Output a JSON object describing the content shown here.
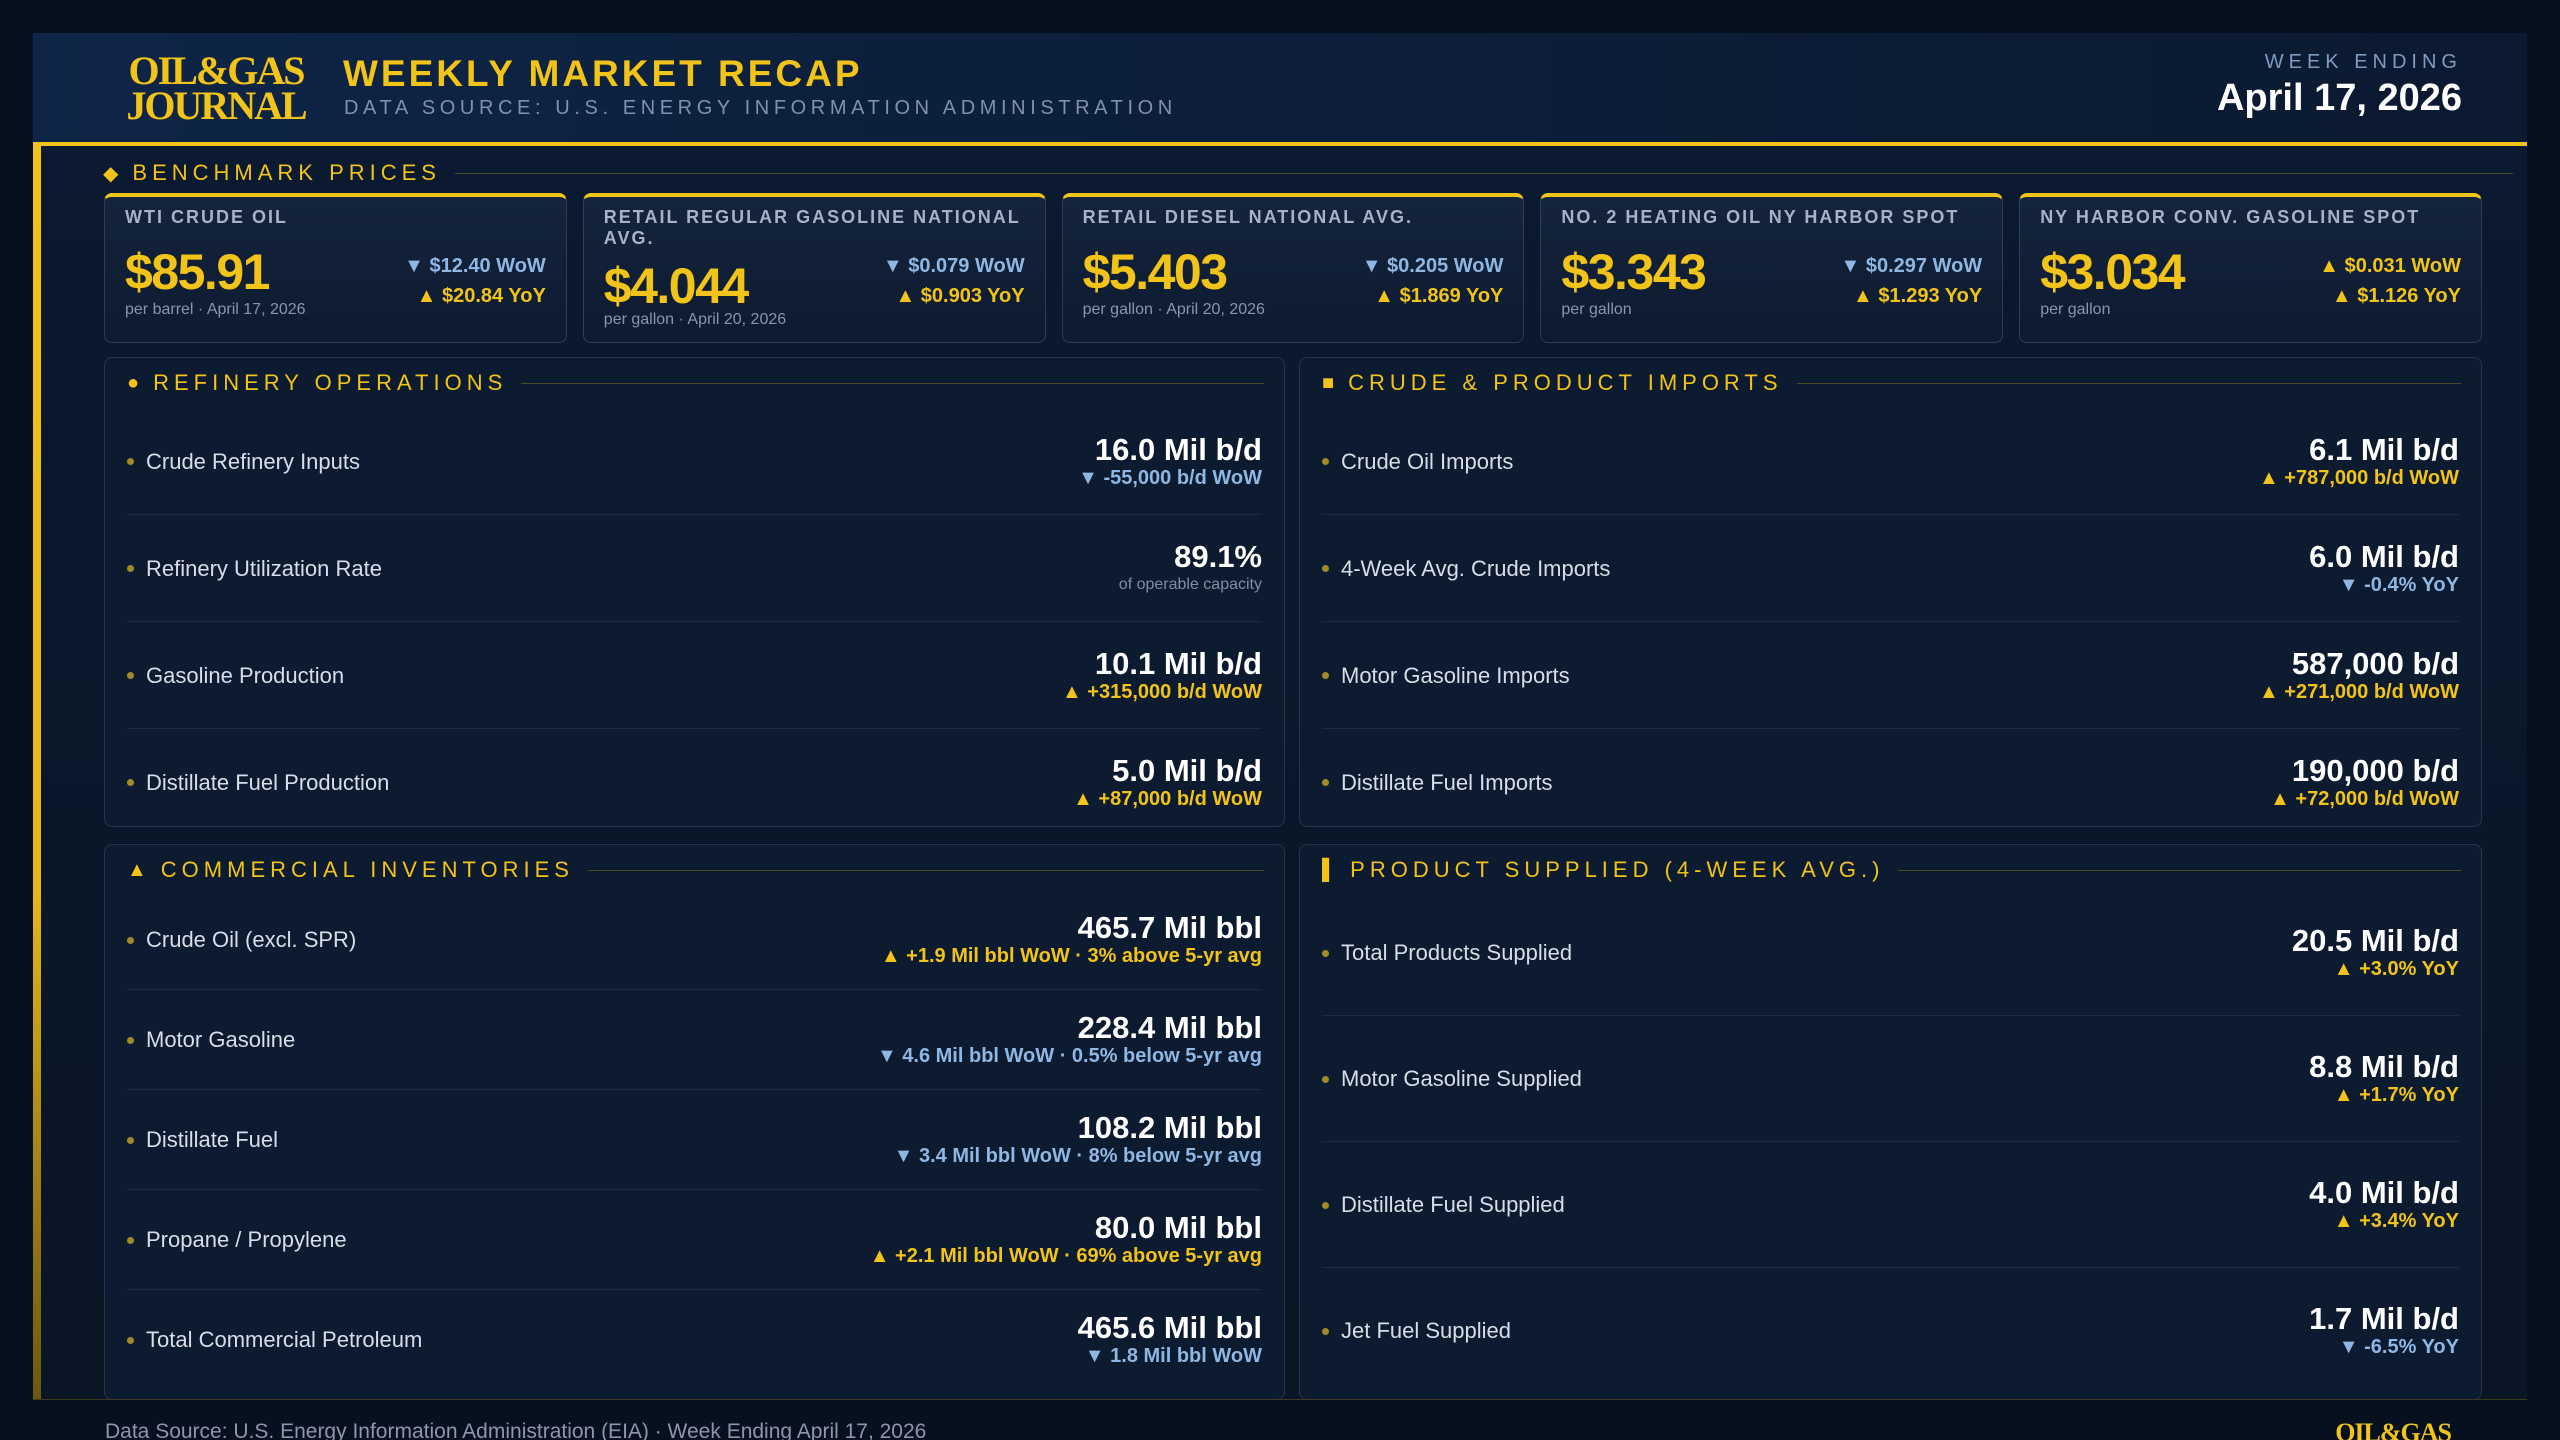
{
  "header": {
    "logo_line1": "OIL&GAS",
    "logo_line2": "JOURNAL",
    "title": "WEEKLY MARKET RECAP",
    "subtitle": "DATA SOURCE: U.S. ENERGY INFORMATION ADMINISTRATION",
    "week_label": "WEEK ENDING",
    "week_date": "April 17, 2026"
  },
  "colors": {
    "accent": "#f2c318",
    "background": "#0b1a31",
    "down": "#8fb7e4"
  },
  "benchmark": {
    "heading": "BENCHMARK PRICES",
    "icon": "diamond-icon",
    "cards": [
      {
        "label": "WTI CRUDE OIL",
        "value": "$85.91",
        "sub": "per barrel · April 17, 2026",
        "wow": "▼ $12.40 WoW",
        "wow_dir": "down",
        "yoy": "▲ $20.84 YoY",
        "yoy_dir": "up"
      },
      {
        "label": "RETAIL REGULAR GASOLINE NATIONAL AVG.",
        "value": "$4.044",
        "sub": "per gallon · April 20, 2026",
        "wow": "▼ $0.079 WoW",
        "wow_dir": "down",
        "yoy": "▲ $0.903 YoY",
        "yoy_dir": "up"
      },
      {
        "label": "RETAIL DIESEL NATIONAL AVG.",
        "value": "$5.403",
        "sub": "per gallon · April 20, 2026",
        "wow": "▼ $0.205 WoW",
        "wow_dir": "down",
        "yoy": "▲ $1.869 YoY",
        "yoy_dir": "up"
      },
      {
        "label": "NO. 2 HEATING OIL NY HARBOR SPOT",
        "value": "$3.343",
        "sub": "per gallon",
        "wow": "▼ $0.297 WoW",
        "wow_dir": "down",
        "yoy": "▲ $1.293 YoY",
        "yoy_dir": "up"
      },
      {
        "label": "NY HARBOR CONV. GASOLINE SPOT",
        "value": "$3.034",
        "sub": "per gallon",
        "wow": "▲ $0.031 WoW",
        "wow_dir": "up",
        "yoy": "▲ $1.126 YoY",
        "yoy_dir": "up"
      }
    ]
  },
  "refinery": {
    "heading": "REFINERY OPERATIONS",
    "icon": "circle-icon",
    "rows": [
      {
        "label": "Crude Refinery Inputs",
        "value": "16.0 Mil b/d",
        "change": "▼ -55,000 b/d WoW",
        "dir": "down"
      },
      {
        "label": "Refinery Utilization Rate",
        "value": "89.1%",
        "note": "of operable capacity"
      },
      {
        "label": "Gasoline Production",
        "value": "10.1 Mil b/d",
        "change": "▲ +315,000 b/d WoW",
        "dir": "up"
      },
      {
        "label": "Distillate Fuel Production",
        "value": "5.0 Mil b/d",
        "change": "▲ +87,000 b/d WoW",
        "dir": "up"
      }
    ]
  },
  "imports": {
    "heading": "CRUDE & PRODUCT IMPORTS",
    "icon": "square-icon",
    "rows": [
      {
        "label": "Crude Oil Imports",
        "value": "6.1 Mil b/d",
        "change": "▲ +787,000 b/d WoW",
        "dir": "up"
      },
      {
        "label": "4-Week Avg. Crude Imports",
        "value": "6.0 Mil b/d",
        "change": "▼ -0.4% YoY",
        "dir": "down"
      },
      {
        "label": "Motor Gasoline Imports",
        "value": "587,000 b/d",
        "change": "▲ +271,000 b/d WoW",
        "dir": "up"
      },
      {
        "label": "Distillate Fuel Imports",
        "value": "190,000 b/d",
        "change": "▲ +72,000 b/d WoW",
        "dir": "up"
      }
    ]
  },
  "inventories": {
    "heading": "COMMERCIAL INVENTORIES",
    "icon": "triangle-icon",
    "rows": [
      {
        "label": "Crude Oil (excl. SPR)",
        "value": "465.7 Mil bbl",
        "change": "▲ +1.9 Mil bbl WoW · 3% above 5-yr avg",
        "dir": "up"
      },
      {
        "label": "Motor Gasoline",
        "value": "228.4 Mil bbl",
        "change": "▼ 4.6 Mil bbl WoW · 0.5% below 5-yr avg",
        "dir": "down"
      },
      {
        "label": "Distillate Fuel",
        "value": "108.2 Mil bbl",
        "change": "▼ 3.4 Mil bbl WoW · 8% below 5-yr avg",
        "dir": "down"
      },
      {
        "label": "Propane / Propylene",
        "value": "80.0 Mil bbl",
        "change": "▲ +2.1 Mil bbl WoW · 69% above 5-yr avg",
        "dir": "up"
      },
      {
        "label": "Total Commercial Petroleum",
        "value": "465.6 Mil bbl",
        "change": "▼ 1.8 Mil bbl WoW",
        "dir": "down"
      }
    ]
  },
  "supplied": {
    "heading": "PRODUCT SUPPLIED (4-WEEK AVG.)",
    "icon": "bar-icon",
    "rows": [
      {
        "label": "Total Products Supplied",
        "value": "20.5 Mil b/d",
        "change": "▲ +3.0% YoY",
        "dir": "up"
      },
      {
        "label": "Motor Gasoline Supplied",
        "value": "8.8 Mil b/d",
        "change": "▲ +1.7% YoY",
        "dir": "up"
      },
      {
        "label": "Distillate Fuel Supplied",
        "value": "4.0 Mil b/d",
        "change": "▲ +3.4% YoY",
        "dir": "up"
      },
      {
        "label": "Jet Fuel Supplied",
        "value": "1.7 Mil b/d",
        "change": "▼ -6.5% YoY",
        "dir": "down"
      }
    ]
  },
  "footer": {
    "text": "Data Source: U.S. Energy Information Administration (EIA)  ·  Week Ending April 17, 2026",
    "logo": "OIL&GAS"
  }
}
